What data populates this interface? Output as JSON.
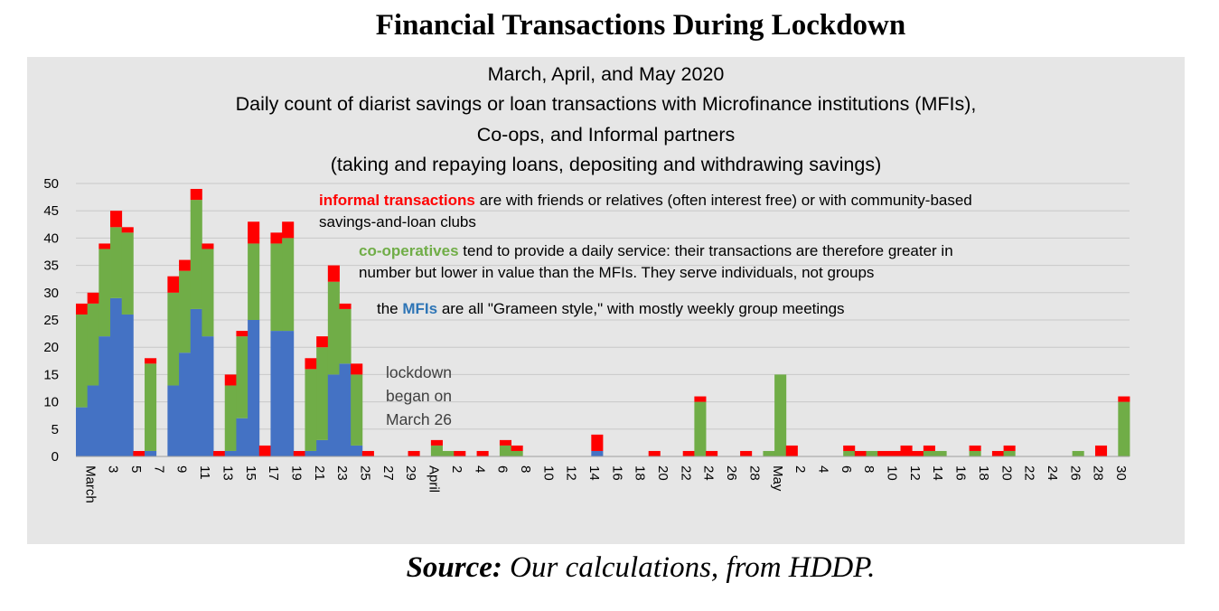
{
  "page": {
    "title": "Financial Transactions During Lockdown",
    "subtitle_lines": [
      "March, April, and May 2020",
      "Daily count of diarist savings or loan transactions with Microfinance institutions (MFIs),",
      "Co-ops, and Informal partners",
      "(taking and repaying loans, depositing and withdrawing savings)"
    ],
    "notes": {
      "informal_label": "informal transactions",
      "informal_line1_rest": " are with friends or relatives (often interest free) or with community-based",
      "informal_line2": "savings-and-loan clubs",
      "coop_label": "co-operatives",
      "coop_line1_rest": " tend to provide a daily service: their transactions are therefore greater in",
      "coop_line2": "number but lower in value than the MFIs. They serve individuals, not groups",
      "mfi_prefix": "the ",
      "mfi_label": "MFIs",
      "mfi_rest": " are all \"Grameen style,\" with mostly weekly group meetings",
      "lockdown_lines": [
        "lockdown",
        "began on",
        "March 26"
      ]
    },
    "source_label": "Source:",
    "source_rest": " Our calculations, from HDDP."
  },
  "colors": {
    "mfi": "#4472c4",
    "coop": "#70ad47",
    "informal": "#ff0000",
    "panel": "#e6e6e6",
    "grid": "#c8c8c8"
  },
  "chart_data": {
    "type": "bar",
    "stacked": true,
    "ylim": [
      0,
      50
    ],
    "yticks": [
      0,
      5,
      10,
      15,
      20,
      25,
      30,
      35,
      40,
      45,
      50
    ],
    "grid": true,
    "x_tick_labels": [
      "March",
      "3",
      "5",
      "7",
      "9",
      "11",
      "13",
      "15",
      "17",
      "19",
      "21",
      "23",
      "25",
      "27",
      "29",
      "April",
      "2",
      "4",
      "6",
      "8",
      "10",
      "12",
      "14",
      "16",
      "18",
      "20",
      "22",
      "24",
      "26",
      "28",
      "May",
      "2",
      "4",
      "6",
      "8",
      "10",
      "12",
      "14",
      "16",
      "18",
      "20",
      "22",
      "24",
      "26",
      "28",
      "30"
    ],
    "series": [
      {
        "name": "MFIs",
        "color_key": "mfi"
      },
      {
        "name": "co-operatives",
        "color_key": "coop"
      },
      {
        "name": "informal transactions",
        "color_key": "informal"
      }
    ],
    "days": [
      {
        "mfi": 9,
        "coop": 17,
        "informal": 2
      },
      {
        "mfi": 13,
        "coop": 15,
        "informal": 2
      },
      {
        "mfi": 22,
        "coop": 16,
        "informal": 1
      },
      {
        "mfi": 29,
        "coop": 13,
        "informal": 3
      },
      {
        "mfi": 26,
        "coop": 15,
        "informal": 1
      },
      {
        "mfi": 0,
        "coop": 0,
        "informal": 1
      },
      {
        "mfi": 1,
        "coop": 16,
        "informal": 1
      },
      {
        "mfi": 0,
        "coop": 0,
        "informal": 0
      },
      {
        "mfi": 13,
        "coop": 17,
        "informal": 3
      },
      {
        "mfi": 19,
        "coop": 15,
        "informal": 2
      },
      {
        "mfi": 27,
        "coop": 20,
        "informal": 2
      },
      {
        "mfi": 22,
        "coop": 16,
        "informal": 1
      },
      {
        "mfi": 0,
        "coop": 0,
        "informal": 1
      },
      {
        "mfi": 1,
        "coop": 12,
        "informal": 2
      },
      {
        "mfi": 7,
        "coop": 15,
        "informal": 1
      },
      {
        "mfi": 25,
        "coop": 14,
        "informal": 4
      },
      {
        "mfi": 0,
        "coop": 0,
        "informal": 2
      },
      {
        "mfi": 23,
        "coop": 16,
        "informal": 2
      },
      {
        "mfi": 23,
        "coop": 17,
        "informal": 3
      },
      {
        "mfi": 0,
        "coop": 0,
        "informal": 1
      },
      {
        "mfi": 1,
        "coop": 15,
        "informal": 2
      },
      {
        "mfi": 3,
        "coop": 17,
        "informal": 2
      },
      {
        "mfi": 15,
        "coop": 17,
        "informal": 3
      },
      {
        "mfi": 17,
        "coop": 10,
        "informal": 1
      },
      {
        "mfi": 2,
        "coop": 13,
        "informal": 2
      },
      {
        "mfi": 0,
        "coop": 0,
        "informal": 1
      },
      {
        "mfi": 0,
        "coop": 0,
        "informal": 0
      },
      {
        "mfi": 0,
        "coop": 0,
        "informal": 0
      },
      {
        "mfi": 0,
        "coop": 0,
        "informal": 0
      },
      {
        "mfi": 0,
        "coop": 0,
        "informal": 1
      },
      {
        "mfi": 0,
        "coop": 0,
        "informal": 0
      },
      {
        "mfi": 0,
        "coop": 2,
        "informal": 1
      },
      {
        "mfi": 0,
        "coop": 1,
        "informal": 0
      },
      {
        "mfi": 0,
        "coop": 0,
        "informal": 1
      },
      {
        "mfi": 0,
        "coop": 0,
        "informal": 0
      },
      {
        "mfi": 0,
        "coop": 0,
        "informal": 1
      },
      {
        "mfi": 0,
        "coop": 0,
        "informal": 0
      },
      {
        "mfi": 0,
        "coop": 2,
        "informal": 1
      },
      {
        "mfi": 0,
        "coop": 1,
        "informal": 1
      },
      {
        "mfi": 0,
        "coop": 0,
        "informal": 0
      },
      {
        "mfi": 0,
        "coop": 0,
        "informal": 0
      },
      {
        "mfi": 0,
        "coop": 0,
        "informal": 0
      },
      {
        "mfi": 0,
        "coop": 0,
        "informal": 0
      },
      {
        "mfi": 0,
        "coop": 0,
        "informal": 0
      },
      {
        "mfi": 0,
        "coop": 0,
        "informal": 0
      },
      {
        "mfi": 1,
        "coop": 0,
        "informal": 3
      },
      {
        "mfi": 0,
        "coop": 0,
        "informal": 0
      },
      {
        "mfi": 0,
        "coop": 0,
        "informal": 0
      },
      {
        "mfi": 0,
        "coop": 0,
        "informal": 0
      },
      {
        "mfi": 0,
        "coop": 0,
        "informal": 0
      },
      {
        "mfi": 0,
        "coop": 0,
        "informal": 1
      },
      {
        "mfi": 0,
        "coop": 0,
        "informal": 0
      },
      {
        "mfi": 0,
        "coop": 0,
        "informal": 0
      },
      {
        "mfi": 0,
        "coop": 0,
        "informal": 1
      },
      {
        "mfi": 0,
        "coop": 10,
        "informal": 1
      },
      {
        "mfi": 0,
        "coop": 0,
        "informal": 1
      },
      {
        "mfi": 0,
        "coop": 0,
        "informal": 0
      },
      {
        "mfi": 0,
        "coop": 0,
        "informal": 0
      },
      {
        "mfi": 0,
        "coop": 0,
        "informal": 1
      },
      {
        "mfi": 0,
        "coop": 0,
        "informal": 0
      },
      {
        "mfi": 0,
        "coop": 1,
        "informal": 0
      },
      {
        "mfi": 0,
        "coop": 15,
        "informal": 0
      },
      {
        "mfi": 0,
        "coop": 0,
        "informal": 2
      },
      {
        "mfi": 0,
        "coop": 0,
        "informal": 0
      },
      {
        "mfi": 0,
        "coop": 0,
        "informal": 0
      },
      {
        "mfi": 0,
        "coop": 0,
        "informal": 0
      },
      {
        "mfi": 0,
        "coop": 0,
        "informal": 0
      },
      {
        "mfi": 0,
        "coop": 1,
        "informal": 1
      },
      {
        "mfi": 0,
        "coop": 0,
        "informal": 1
      },
      {
        "mfi": 0,
        "coop": 1,
        "informal": 0
      },
      {
        "mfi": 0,
        "coop": 0,
        "informal": 1
      },
      {
        "mfi": 0,
        "coop": 0,
        "informal": 1
      },
      {
        "mfi": 0,
        "coop": 0,
        "informal": 2
      },
      {
        "mfi": 0,
        "coop": 0,
        "informal": 1
      },
      {
        "mfi": 0,
        "coop": 1,
        "informal": 1
      },
      {
        "mfi": 0,
        "coop": 1,
        "informal": 0
      },
      {
        "mfi": 0,
        "coop": 0,
        "informal": 0
      },
      {
        "mfi": 0,
        "coop": 0,
        "informal": 0
      },
      {
        "mfi": 0,
        "coop": 1,
        "informal": 1
      },
      {
        "mfi": 0,
        "coop": 0,
        "informal": 0
      },
      {
        "mfi": 0,
        "coop": 0,
        "informal": 1
      },
      {
        "mfi": 0,
        "coop": 1,
        "informal": 1
      },
      {
        "mfi": 0,
        "coop": 0,
        "informal": 0
      },
      {
        "mfi": 0,
        "coop": 0,
        "informal": 0
      },
      {
        "mfi": 0,
        "coop": 0,
        "informal": 0
      },
      {
        "mfi": 0,
        "coop": 0,
        "informal": 0
      },
      {
        "mfi": 0,
        "coop": 0,
        "informal": 0
      },
      {
        "mfi": 0,
        "coop": 1,
        "informal": 0
      },
      {
        "mfi": 0,
        "coop": 0,
        "informal": 0
      },
      {
        "mfi": 0,
        "coop": 0,
        "informal": 2
      },
      {
        "mfi": 0,
        "coop": 0,
        "informal": 0
      },
      {
        "mfi": 0,
        "coop": 10,
        "informal": 1
      }
    ]
  }
}
